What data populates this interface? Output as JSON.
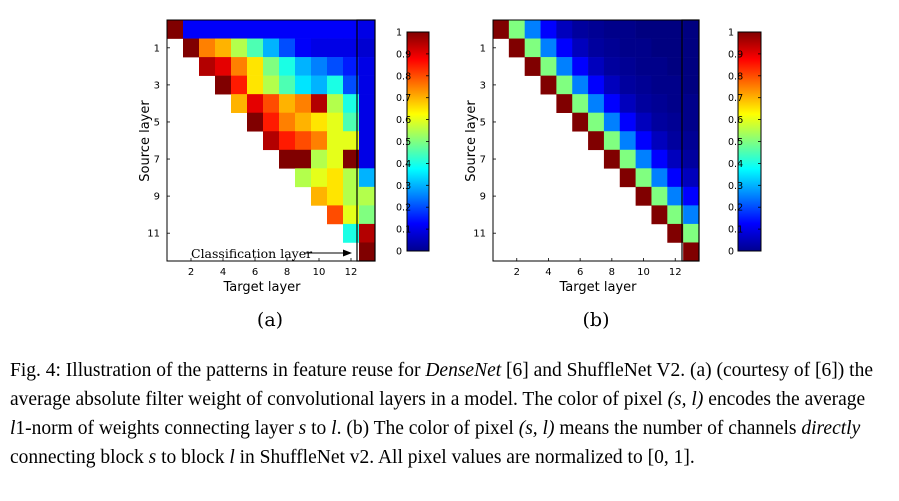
{
  "figure": {
    "panels": [
      {
        "label": "(a)",
        "xlabel": "Target layer",
        "ylabel": "Source layer",
        "x_ticks": [
          "2",
          "4",
          "6",
          "8",
          "10",
          "12"
        ],
        "y_ticks": [
          "1",
          "3",
          "5",
          "7",
          "9",
          "11"
        ],
        "annotation": "Classification layer",
        "colorbar_ticks": [
          "1",
          "0.9",
          "0.8",
          "0.7",
          "0.6",
          "0.5",
          "0.4",
          "0.3",
          "0.2",
          "0.1",
          "0"
        ]
      },
      {
        "label": "(b)",
        "xlabel": "Target layer",
        "ylabel": "Source layer",
        "x_ticks": [
          "2",
          "4",
          "6",
          "8",
          "10",
          "12"
        ],
        "y_ticks": [
          "1",
          "3",
          "5",
          "7",
          "9",
          "11"
        ],
        "colorbar_ticks": [
          "1",
          "0.9",
          "0.8",
          "0.7",
          "0.6",
          "0.5",
          "0.4",
          "0.3",
          "0.2",
          "0.1",
          "0"
        ]
      }
    ]
  },
  "chart_data": [
    {
      "type": "heatmap",
      "xlabel": "Target layer",
      "ylabel": "Source layer",
      "rows": [
        "0",
        "1",
        "2",
        "3",
        "4",
        "5",
        "6",
        "7",
        "8",
        "9",
        "10",
        "11",
        "12"
      ],
      "cols": [
        "1",
        "2",
        "3",
        "4",
        "5",
        "6",
        "7",
        "8",
        "9",
        "10",
        "11",
        "12",
        "13"
      ],
      "value_range": [
        0,
        1
      ],
      "colorscale": "jet",
      "values": [
        [
          1.0,
          0.12,
          0.12,
          0.12,
          0.12,
          0.12,
          0.12,
          0.12,
          0.12,
          0.12,
          0.12,
          0.12,
          0.1
        ],
        [
          null,
          1.0,
          0.75,
          0.7,
          0.55,
          0.45,
          0.3,
          0.2,
          0.12,
          0.1,
          0.1,
          0.1,
          0.08
        ],
        [
          null,
          null,
          0.95,
          0.9,
          0.75,
          0.65,
          0.5,
          0.4,
          0.3,
          0.25,
          0.2,
          0.15,
          0.1
        ],
        [
          null,
          null,
          null,
          1.0,
          0.85,
          0.65,
          0.55,
          0.45,
          0.35,
          0.3,
          0.4,
          0.2,
          0.1
        ],
        [
          null,
          null,
          null,
          null,
          0.7,
          0.9,
          0.8,
          0.7,
          0.75,
          0.95,
          0.55,
          0.4,
          0.1
        ],
        [
          null,
          null,
          null,
          null,
          null,
          1.0,
          0.85,
          0.75,
          0.7,
          0.65,
          0.6,
          0.45,
          0.1
        ],
        [
          null,
          null,
          null,
          null,
          null,
          null,
          0.95,
          0.85,
          0.8,
          0.75,
          0.6,
          0.6,
          0.1
        ],
        [
          null,
          null,
          null,
          null,
          null,
          null,
          null,
          1.0,
          1.0,
          0.55,
          0.6,
          1.0,
          0.1
        ],
        [
          null,
          null,
          null,
          null,
          null,
          null,
          null,
          null,
          0.55,
          0.6,
          0.65,
          0.55,
          0.3
        ],
        [
          null,
          null,
          null,
          null,
          null,
          null,
          null,
          null,
          null,
          0.7,
          0.65,
          0.55,
          0.55
        ],
        [
          null,
          null,
          null,
          null,
          null,
          null,
          null,
          null,
          null,
          null,
          0.8,
          0.6,
          0.5
        ],
        [
          null,
          null,
          null,
          null,
          null,
          null,
          null,
          null,
          null,
          null,
          null,
          0.4,
          0.95
        ],
        [
          null,
          null,
          null,
          null,
          null,
          null,
          null,
          null,
          null,
          null,
          null,
          null,
          1.0
        ]
      ]
    },
    {
      "type": "heatmap",
      "xlabel": "Target layer",
      "ylabel": "Source layer",
      "rows": [
        "0",
        "1",
        "2",
        "3",
        "4",
        "5",
        "6",
        "7",
        "8",
        "9",
        "10",
        "11",
        "12"
      ],
      "cols": [
        "1",
        "2",
        "3",
        "4",
        "5",
        "6",
        "7",
        "8",
        "9",
        "10",
        "11",
        "12",
        "13"
      ],
      "value_range": [
        0,
        1
      ],
      "colorscale": "jet",
      "values": [
        [
          1.0,
          0.5,
          0.25,
          0.125,
          0.06,
          0.03,
          0.02,
          0.01,
          0.01,
          0.0,
          0.0,
          0.0,
          0.0
        ],
        [
          null,
          1.0,
          0.5,
          0.25,
          0.125,
          0.06,
          0.03,
          0.02,
          0.01,
          0.01,
          0.0,
          0.0,
          0.0
        ],
        [
          null,
          null,
          1.0,
          0.5,
          0.25,
          0.125,
          0.06,
          0.03,
          0.02,
          0.01,
          0.01,
          0.0,
          0.0
        ],
        [
          null,
          null,
          null,
          1.0,
          0.5,
          0.25,
          0.125,
          0.06,
          0.03,
          0.02,
          0.01,
          0.01,
          0.0
        ],
        [
          null,
          null,
          null,
          null,
          1.0,
          0.5,
          0.25,
          0.125,
          0.06,
          0.03,
          0.02,
          0.01,
          0.01
        ],
        [
          null,
          null,
          null,
          null,
          null,
          1.0,
          0.5,
          0.25,
          0.125,
          0.06,
          0.03,
          0.02,
          0.01
        ],
        [
          null,
          null,
          null,
          null,
          null,
          null,
          1.0,
          0.5,
          0.25,
          0.125,
          0.06,
          0.03,
          0.02
        ],
        [
          null,
          null,
          null,
          null,
          null,
          null,
          null,
          1.0,
          0.5,
          0.25,
          0.125,
          0.06,
          0.03
        ],
        [
          null,
          null,
          null,
          null,
          null,
          null,
          null,
          null,
          1.0,
          0.5,
          0.25,
          0.125,
          0.06
        ],
        [
          null,
          null,
          null,
          null,
          null,
          null,
          null,
          null,
          null,
          1.0,
          0.5,
          0.25,
          0.125
        ],
        [
          null,
          null,
          null,
          null,
          null,
          null,
          null,
          null,
          null,
          null,
          1.0,
          0.5,
          0.25
        ],
        [
          null,
          null,
          null,
          null,
          null,
          null,
          null,
          null,
          null,
          null,
          null,
          1.0,
          0.5
        ],
        [
          null,
          null,
          null,
          null,
          null,
          null,
          null,
          null,
          null,
          null,
          null,
          null,
          1.0
        ]
      ]
    }
  ],
  "caption": {
    "prefix": "Fig. 4: Illustration of the patterns in feature reuse for ",
    "densenet": "DenseNet",
    "mid1": " [6] and ShuffleNet V2. (a) (courtesy of [6]) the average absolute filter weight of convolutional layers in a model. The color of pixel ",
    "pair1": "(s, l)",
    "mid2": " encodes the average ",
    "norm": "l",
    "mid3": "1-norm of weights connecting layer ",
    "s1": "s",
    "mid4": " to ",
    "l1": "l",
    "mid5": ". (b) The color of pixel ",
    "pair2": "(s, l)",
    "mid6": " means the number of channels ",
    "directly": "directly",
    "mid7": " connecting block ",
    "s2": "s",
    "mid8": " to block ",
    "l2": "l",
    "mid9": " in ShuffleNet v2. All pixel values are normalized to ",
    "range": "[0, 1]",
    "end": "."
  }
}
